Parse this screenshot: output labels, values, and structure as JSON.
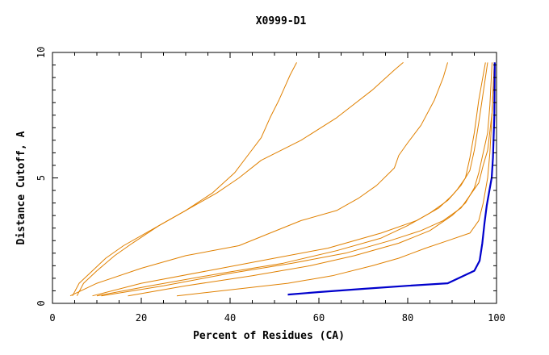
{
  "chart_data": {
    "type": "line",
    "title": "X0999-D1",
    "xlabel": "Percent of Residues (CA)",
    "ylabel": "Distance Cutoff, A",
    "xlim": [
      0,
      100
    ],
    "ylim": [
      0,
      10
    ],
    "x_ticks": [
      "0",
      "20",
      "40",
      "60",
      "80",
      "100"
    ],
    "y_ticks": [
      "0",
      "5",
      "10"
    ],
    "grid": false,
    "colors": {
      "models": "#e08000",
      "highlight": "#0000cc"
    },
    "series": [
      {
        "highlight": false,
        "x": [
          4.5,
          6,
          9,
          12,
          16,
          22,
          30,
          36,
          41,
          44,
          47,
          49,
          51,
          52.5,
          53.5,
          55
        ],
        "y": [
          0.3,
          0.8,
          1.3,
          1.8,
          2.3,
          2.9,
          3.7,
          4.4,
          5.2,
          5.9,
          6.6,
          7.4,
          8.1,
          8.7,
          9.1,
          9.6
        ]
      },
      {
        "highlight": false,
        "x": [
          5.5,
          7,
          10,
          14,
          18,
          24,
          31,
          37,
          42,
          47,
          56,
          64,
          72,
          77,
          79
        ],
        "y": [
          0.3,
          0.8,
          1.3,
          1.9,
          2.4,
          3.1,
          3.8,
          4.4,
          5.0,
          5.7,
          6.5,
          7.4,
          8.5,
          9.3,
          9.6
        ]
      },
      {
        "highlight": false,
        "x": [
          4,
          10,
          20,
          30,
          42,
          49,
          56,
          64,
          69,
          73,
          77,
          78,
          80,
          83,
          86,
          88,
          89
        ],
        "y": [
          0.3,
          0.8,
          1.4,
          1.9,
          2.3,
          2.8,
          3.3,
          3.7,
          4.2,
          4.7,
          5.4,
          5.9,
          6.4,
          7.1,
          8.1,
          9.0,
          9.6
        ]
      },
      {
        "highlight": false,
        "x": [
          9,
          20,
          35,
          50,
          62,
          74,
          82,
          87,
          90,
          92,
          94,
          95,
          96,
          97,
          98
        ],
        "y": [
          0.3,
          0.8,
          1.3,
          1.8,
          2.2,
          2.8,
          3.3,
          3.8,
          4.3,
          4.7,
          5.3,
          6.1,
          7.2,
          8.4,
          9.6
        ]
      },
      {
        "highlight": false,
        "x": [
          10,
          22,
          38,
          52,
          64,
          74,
          80,
          85,
          89,
          91,
          93,
          94,
          95,
          96,
          97.5
        ],
        "y": [
          0.3,
          0.7,
          1.2,
          1.6,
          2.1,
          2.6,
          3.1,
          3.6,
          4.1,
          4.5,
          5.0,
          5.8,
          6.8,
          8.1,
          9.6
        ]
      },
      {
        "highlight": false,
        "x": [
          11,
          25,
          40,
          54,
          66,
          76,
          83,
          88,
          92,
          94,
          96,
          97,
          98,
          99,
          99.5
        ],
        "y": [
          0.3,
          0.7,
          1.2,
          1.6,
          2.0,
          2.5,
          2.9,
          3.3,
          3.8,
          4.3,
          4.8,
          5.5,
          6.1,
          7.6,
          9.6
        ]
      },
      {
        "highlight": false,
        "x": [
          17,
          30,
          45,
          58,
          68,
          78,
          85,
          90,
          93,
          95,
          96,
          97,
          98,
          98.5,
          99
        ],
        "y": [
          0.3,
          0.7,
          1.1,
          1.5,
          1.9,
          2.4,
          2.9,
          3.5,
          4.0,
          4.6,
          5.2,
          6.0,
          6.8,
          7.9,
          9.6
        ]
      },
      {
        "highlight": false,
        "x": [
          28,
          53,
          63,
          72,
          78,
          84,
          89,
          94,
          96,
          97,
          98,
          98.5,
          99,
          99.5
        ],
        "y": [
          0.3,
          0.8,
          1.1,
          1.5,
          1.8,
          2.2,
          2.5,
          2.8,
          3.3,
          4.0,
          5.0,
          6.0,
          7.6,
          9.6
        ]
      },
      {
        "highlight": true,
        "x": [
          53,
          60,
          70,
          80,
          89,
          95,
          96.2,
          96.8,
          97.3,
          97.8,
          98.4,
          98.9,
          99.2,
          99.5,
          99.6
        ],
        "y": [
          0.35,
          0.45,
          0.58,
          0.7,
          0.8,
          1.3,
          1.7,
          2.4,
          3.2,
          3.9,
          4.5,
          5.0,
          5.8,
          7.5,
          9.6
        ]
      }
    ]
  }
}
